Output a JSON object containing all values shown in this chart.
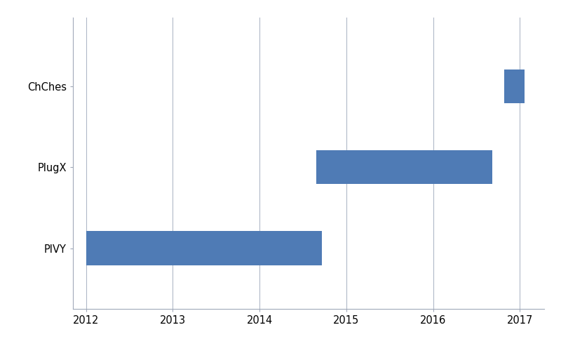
{
  "malware": [
    "PIVY",
    "PlugX",
    "ChChes"
  ],
  "starts": [
    2012.0,
    2014.65,
    2016.82
  ],
  "ends": [
    2014.72,
    2016.68,
    2017.05
  ],
  "bar_color": "#4f7bb5",
  "bar_height": 0.42,
  "xlim": [
    2011.85,
    2017.28
  ],
  "ylim": [
    -0.75,
    2.85
  ],
  "xticks": [
    2012,
    2013,
    2014,
    2015,
    2016,
    2017
  ],
  "plot_bg": "#ffffff",
  "figure_bg": "#ffffff",
  "grid_color": "#b0b8c8",
  "spine_color": "#a0a8b8",
  "tick_label_fontsize": 10.5,
  "ytick_fontsize": 10.5
}
